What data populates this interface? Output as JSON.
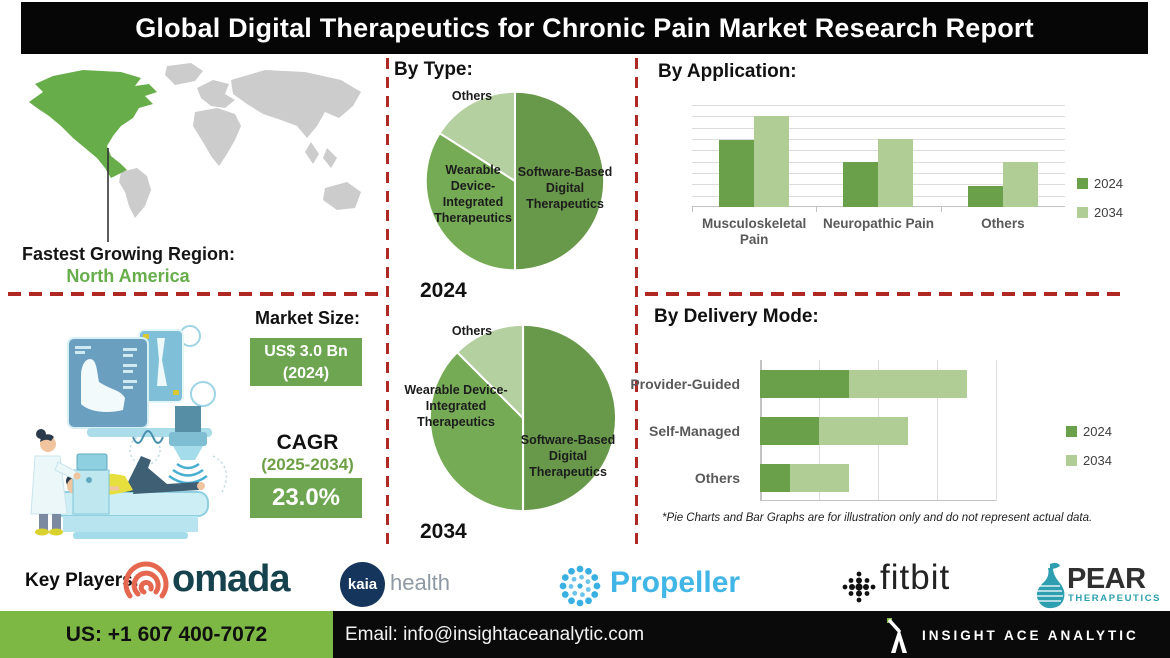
{
  "title": "Global Digital Therapeutics for Chronic Pain Market Research Report",
  "map": {
    "region_label": "Fastest Growing Region:",
    "region_value": "North America"
  },
  "sections": {
    "by_type": "By Type:",
    "by_application": "By Application:",
    "by_delivery": "By Delivery Mode:"
  },
  "market": {
    "size_label": "Market Size:",
    "size_value": "US$ 3.0 Bn",
    "size_year": "(2024)",
    "cagr_label": "CAGR",
    "cagr_period": "(2025-2034)",
    "cagr_value": "23.0%"
  },
  "disclaimer": "*Pie Charts and Bar Graphs are for illustration only and do not represent actual data.",
  "key_players": {
    "label": "Key Players:",
    "omada": "omada",
    "kaia": "kaia",
    "kaia_suffix": "health",
    "propeller": "Propeller",
    "fitbit": "fitbit",
    "pear": "PEAR",
    "pear_suffix": "THERAPEUTICS"
  },
  "footer": {
    "phone": "US: +1 607 400-7072",
    "email": "Email: info@insightaceanalytic.com",
    "brand": "INSIGHT ACE ANALYTIC"
  },
  "colors": {
    "pie_dark": "#68984a",
    "pie_mid": "#76ab55",
    "pie_light": "#b4cfa0",
    "bar_dark": "#6aa04a",
    "bar_light": "#b0cd96",
    "accent_red": "#b02823",
    "map_green": "#67ae4b",
    "map_gray": "#cccccc",
    "box_green": "#6da550",
    "footer_green": "#7cb843"
  },
  "chart_data": [
    {
      "id": "pie_2024",
      "type": "pie",
      "year_label": "2024",
      "slices": [
        {
          "label": "Software-Based Digital Therapeutics",
          "value": 50
        },
        {
          "label": "Wearable Device-Integrated Therapeutics",
          "value": 34
        },
        {
          "label": "Others",
          "value": 16
        }
      ],
      "colors": [
        "#68984a",
        "#76ab55",
        "#b4cfa0"
      ],
      "note": "illustrative only"
    },
    {
      "id": "pie_2034",
      "type": "pie",
      "year_label": "2034",
      "slices": [
        {
          "label": "Software-Based Digital Therapeutics",
          "value": 50
        },
        {
          "label": "Wearable Device-Integrated Therapeutics",
          "value": 37.5
        },
        {
          "label": "Others",
          "value": 12.5
        }
      ],
      "colors": [
        "#68984a",
        "#76ab55",
        "#b4cfa0"
      ],
      "note": "illustrative only"
    },
    {
      "id": "application",
      "type": "bar",
      "title": "By Application:",
      "categories": [
        "Musculoskeletal Pain",
        "Neuropathic Pain",
        "Others"
      ],
      "series": [
        {
          "name": "2024",
          "color": "#6aa04a",
          "values": [
            5.9,
            4.0,
            1.9
          ]
        },
        {
          "name": "2034",
          "color": "#b0cd96",
          "values": [
            8.0,
            6.0,
            4.0
          ]
        }
      ],
      "ylim": [
        0,
        9
      ],
      "grid": true,
      "legend_position": "right",
      "note": "illustrative only"
    },
    {
      "id": "delivery",
      "type": "stacked-hbar",
      "title": "By Delivery Mode:",
      "categories": [
        "Provider-Guided",
        "Self-Managed",
        "Others"
      ],
      "series": [
        {
          "name": "2024",
          "color": "#6aa04a",
          "values": [
            1.5,
            1.0,
            0.5
          ]
        },
        {
          "name": "2034",
          "color": "#b0cd96",
          "values": [
            2.0,
            1.5,
            1.0
          ]
        }
      ],
      "xlim": [
        0,
        4
      ],
      "grid": true,
      "legend_position": "right",
      "note": "illustrative only"
    }
  ]
}
